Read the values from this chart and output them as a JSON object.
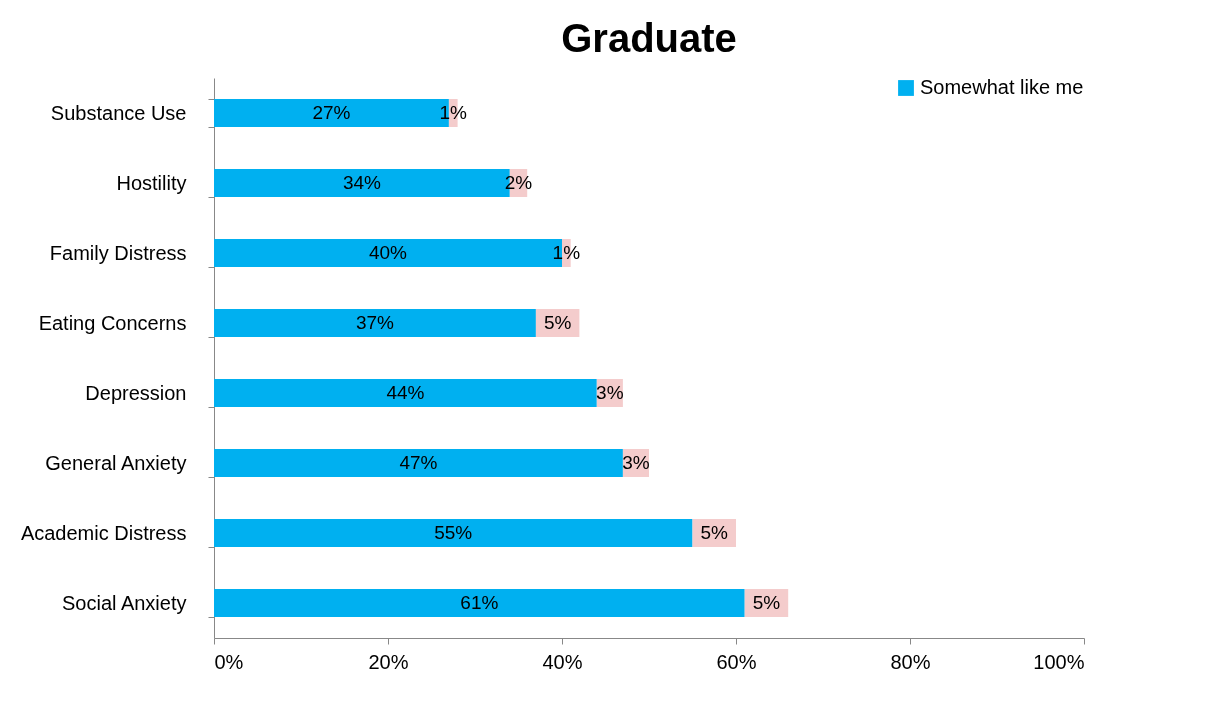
{
  "chart_data": {
    "type": "bar",
    "orientation": "horizontal",
    "stacked": true,
    "title": "Graduate",
    "categories": [
      "Substance Use",
      "Hostility",
      "Family Distress",
      "Eating Concerns",
      "Depression",
      "General Anxiety",
      "Academic Distress",
      "Social Anxiety"
    ],
    "series": [
      {
        "name": "Somewhat like me",
        "color": "#00b0f0",
        "values": [
          27,
          34,
          40,
          37,
          44,
          47,
          55,
          61
        ],
        "value_labels": [
          "27%",
          "34%",
          "40%",
          "37%",
          "44%",
          "47%",
          "55%",
          "61%"
        ]
      },
      {
        "color": "#f4cccc",
        "values": [
          1,
          2,
          1,
          5,
          3,
          3,
          5,
          5
        ],
        "value_labels": [
          "1%",
          "2%",
          "1%",
          "5%",
          "3%",
          "3%",
          "5%",
          "5%"
        ]
      }
    ],
    "xlim": [
      0,
      100
    ],
    "xticks": [
      {
        "value": 0,
        "label": "0%"
      },
      {
        "value": 20,
        "label": "20%"
      },
      {
        "value": 40,
        "label": "40%"
      },
      {
        "value": 60,
        "label": "60%"
      },
      {
        "value": 80,
        "label": "80%"
      },
      {
        "value": 100,
        "label": "100%"
      }
    ],
    "grid": false,
    "legend": "top right"
  }
}
